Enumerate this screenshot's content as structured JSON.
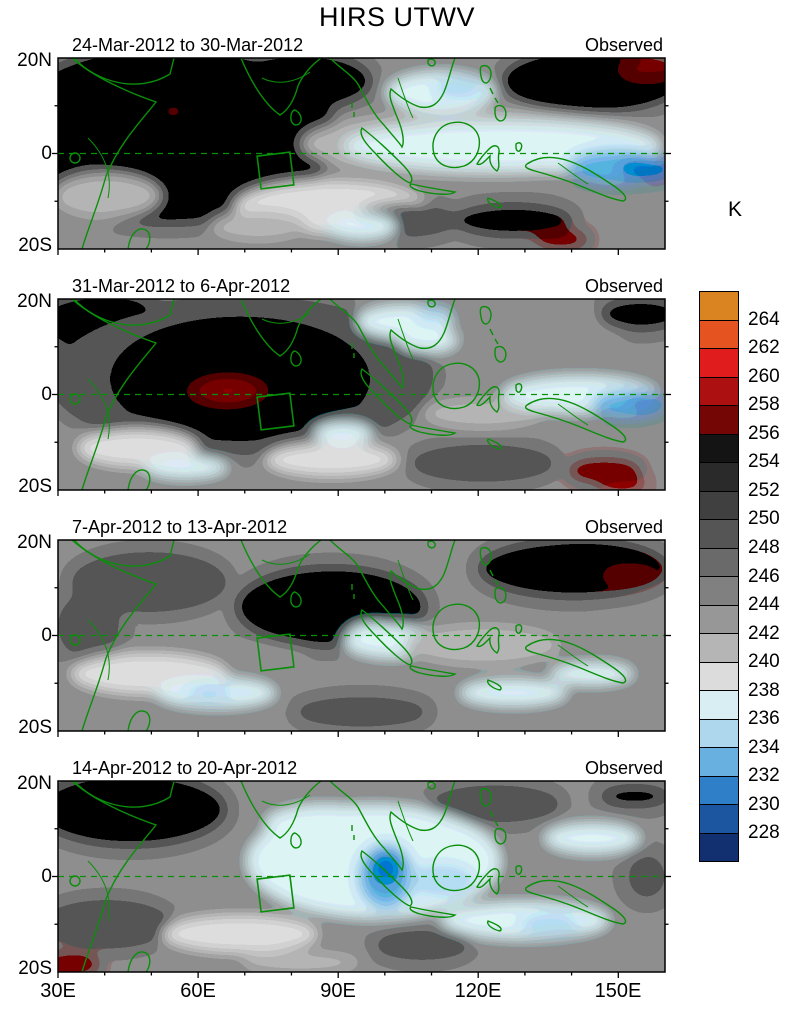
{
  "chart_data": {
    "type": "heatmap",
    "title": "HIRS UTWV",
    "variable": "HIRS UTWV",
    "units": "K",
    "x_axis": {
      "tick_labels": [
        "30E",
        "60E",
        "90E",
        "120E",
        "150E"
      ],
      "range_deg_east": [
        30,
        160
      ]
    },
    "y_axis": {
      "tick_labels": [
        "20N",
        "0",
        "20S"
      ],
      "range_deg_north": [
        -20,
        20
      ]
    },
    "colorbar": {
      "label": "K",
      "tick_values": [
        264,
        262,
        260,
        258,
        256,
        254,
        252,
        250,
        248,
        246,
        244,
        242,
        240,
        238,
        236,
        234,
        232,
        230,
        228
      ],
      "cell_colors_top_to_bottom": [
        "#d98321",
        "#e55420",
        "#e01c1c",
        "#ad1010",
        "#740606",
        "#141414",
        "#2a2a2a",
        "#404040",
        "#555555",
        "#6a6a6a",
        "#808080",
        "#979797",
        "#b5b5b5",
        "#dcdcdc",
        "#d8eef2",
        "#aed6ec",
        "#68b0e0",
        "#2f7fc8",
        "#1c55a0",
        "#123070"
      ]
    },
    "style": {
      "map_base_color": "#8a8a8a",
      "overlay_color": "#0a8f0a",
      "frame_color": "#000000"
    },
    "overlays": {
      "coastlines": "green",
      "equator_line": "dashed green at 0 latitude",
      "study_region_box_lon": [
        73,
        80
      ],
      "study_region_box_lat": [
        -7,
        0
      ]
    },
    "panels": [
      {
        "date_range": "24-Mar-2012 to 30-Mar-2012",
        "annotation": "Observed",
        "blobs": [
          [
            40,
            12,
            12,
            16,
            "#404040"
          ],
          [
            18,
            40,
            28,
            48,
            "#404040"
          ],
          [
            20,
            38,
            16,
            28,
            "#2a2a2a"
          ],
          [
            23,
            34,
            9,
            16,
            "#141414"
          ],
          [
            19,
            28,
            2.2,
            3,
            "#740606"
          ],
          [
            8,
            72,
            9,
            12,
            "#b5b5b5"
          ],
          [
            45,
            78,
            16,
            14,
            "#dcdcdc"
          ],
          [
            33,
            88,
            8,
            8,
            "#b5b5b5"
          ],
          [
            57,
            85,
            9,
            9,
            "#555555"
          ],
          [
            70,
            45,
            30,
            18,
            "#b5b5b5"
          ],
          [
            73,
            46,
            26,
            13,
            "#d8eef2"
          ],
          [
            63,
            18,
            9,
            11,
            "#d8eef2"
          ],
          [
            66,
            16,
            4,
            5,
            "#aed6ec"
          ],
          [
            88,
            12,
            15,
            17,
            "#2a2a2a"
          ],
          [
            97,
            6,
            5,
            7,
            "#740606"
          ],
          [
            87,
            51,
            12,
            9,
            "#d8eef2"
          ],
          [
            92,
            57,
            8,
            9,
            "#68b0e0"
          ],
          [
            97,
            58,
            4.5,
            6,
            "#2f7fc8"
          ],
          [
            75,
            85,
            10,
            9,
            "#404040"
          ],
          [
            83,
            95,
            4.5,
            4.5,
            "#740606"
          ],
          [
            50,
            88,
            6,
            7,
            "#d8eef2"
          ]
        ]
      },
      {
        "date_range": "31-Mar-2012 to 6-Apr-2012",
        "annotation": "Observed",
        "blobs": [
          [
            8,
            12,
            12,
            16,
            "#404040"
          ],
          [
            30,
            40,
            32,
            42,
            "#555555"
          ],
          [
            30,
            42,
            20,
            28,
            "#2a2a2a"
          ],
          [
            31,
            43,
            11,
            18,
            "#141414"
          ],
          [
            28,
            48,
            7,
            9,
            "#740606"
          ],
          [
            28,
            48,
            3.5,
            4.5,
            "#8f0808"
          ],
          [
            80,
            15,
            14,
            12,
            "#979797"
          ],
          [
            96,
            8,
            7,
            9,
            "#404040"
          ],
          [
            57,
            12,
            8,
            9,
            "#d8eef2"
          ],
          [
            61,
            22,
            5,
            6,
            "#d8eef2"
          ],
          [
            62,
            8,
            3,
            4,
            "#aed6ec"
          ],
          [
            70,
            60,
            10,
            8,
            "#b5b5b5"
          ],
          [
            86,
            50,
            13,
            10,
            "#d8eef2"
          ],
          [
            94,
            55,
            6,
            7,
            "#68b0e0"
          ],
          [
            97,
            54,
            3,
            4,
            "#2f7fc8"
          ],
          [
            13,
            78,
            10,
            10,
            "#dcdcdc"
          ],
          [
            21,
            88,
            7,
            6,
            "#d8eef2"
          ],
          [
            45,
            84,
            11,
            9,
            "#dcdcdc"
          ],
          [
            47,
            70,
            5,
            6,
            "#d8eef2"
          ],
          [
            70,
            86,
            12,
            10,
            "#555555"
          ],
          [
            90,
            90,
            6,
            6,
            "#740606"
          ],
          [
            93,
            97,
            4,
            4,
            "#8f0808"
          ]
        ]
      },
      {
        "date_range": "7-Apr-2012 to 13-Apr-2012",
        "annotation": "Observed",
        "blobs": [
          [
            15,
            22,
            13,
            16,
            "#555555"
          ],
          [
            5,
            45,
            6,
            20,
            "#6a6a6a"
          ],
          [
            45,
            35,
            16,
            22,
            "#404040"
          ],
          [
            48,
            32,
            8,
            11,
            "#2a2a2a"
          ],
          [
            85,
            15,
            16,
            16,
            "#404040"
          ],
          [
            90,
            11,
            8,
            8,
            "#2a2a2a"
          ],
          [
            94,
            18,
            4.5,
            5,
            "#740606"
          ],
          [
            15,
            70,
            13,
            11,
            "#dcdcdc"
          ],
          [
            26,
            80,
            10,
            8,
            "#d8eef2"
          ],
          [
            25,
            80,
            4,
            4,
            "#aed6ec"
          ],
          [
            35,
            60,
            6,
            6,
            "#979797"
          ],
          [
            55,
            53,
            8,
            9,
            "#d8eef2"
          ],
          [
            52,
            48,
            4,
            5,
            "#d8eef2"
          ],
          [
            70,
            55,
            13,
            11,
            "#b5b5b5"
          ],
          [
            75,
            80,
            9,
            7,
            "#d8eef2"
          ],
          [
            88,
            70,
            7,
            6,
            "#d8eef2"
          ],
          [
            50,
            90,
            11,
            8,
            "#555555"
          ],
          [
            93,
            50,
            6,
            8,
            "#979797"
          ]
        ]
      },
      {
        "date_range": "14-Apr-2012 to 20-Apr-2012",
        "annotation": "Observed",
        "blobs": [
          [
            12,
            15,
            16,
            20,
            "#404040"
          ],
          [
            10,
            12,
            8,
            11,
            "#2a2a2a"
          ],
          [
            8,
            75,
            11,
            13,
            "#555555"
          ],
          [
            72,
            12,
            11,
            10,
            "#555555"
          ],
          [
            95,
            8,
            6,
            6,
            "#404040"
          ],
          [
            30,
            80,
            13,
            10,
            "#dcdcdc"
          ],
          [
            52,
            42,
            21,
            30,
            "#d8eef2"
          ],
          [
            44,
            22,
            10,
            10,
            "#d8eef2"
          ],
          [
            54,
            50,
            4.5,
            17,
            "#68b0e0"
          ],
          [
            54,
            46,
            2.6,
            9,
            "#2f7fc8"
          ],
          [
            63,
            52,
            5.5,
            8,
            "#aed6ec"
          ],
          [
            88,
            30,
            8,
            8,
            "#d8eef2"
          ],
          [
            77,
            73,
            14,
            10,
            "#d8eef2"
          ],
          [
            81,
            75,
            5,
            5,
            "#aed6ec"
          ],
          [
            60,
            86,
            8,
            8,
            "#555555"
          ],
          [
            97,
            50,
            4,
            14,
            "#6a6a6a"
          ],
          [
            40,
            95,
            10,
            6,
            "#b5b5b5"
          ],
          [
            2,
            96,
            5,
            6,
            "#740606"
          ]
        ]
      }
    ]
  }
}
